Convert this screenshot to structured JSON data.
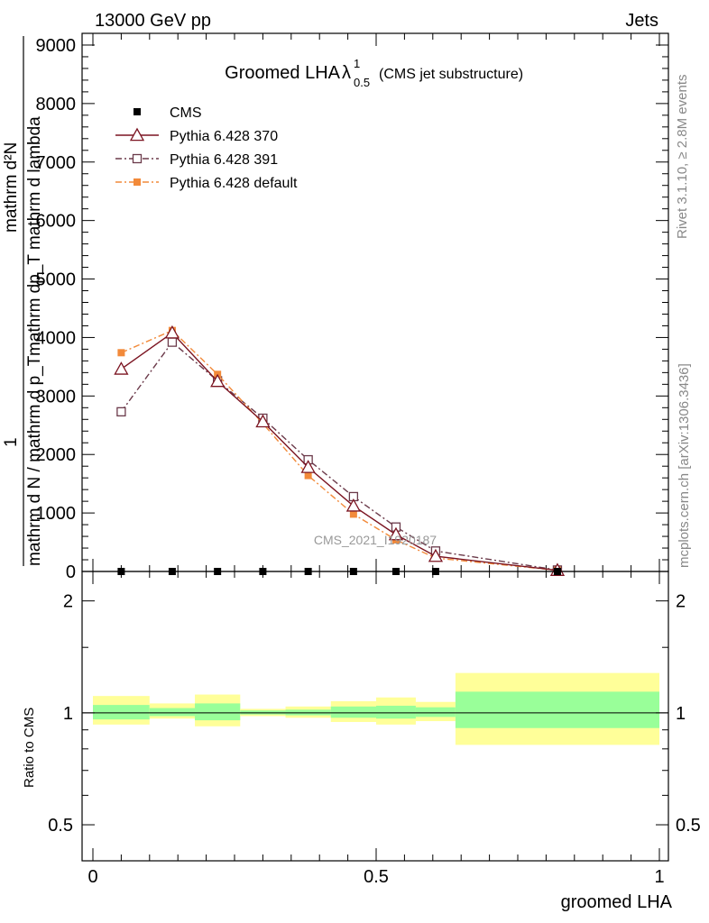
{
  "header": {
    "energy_label": "13000 GeV pp",
    "process_label": "Jets"
  },
  "side_labels": {
    "rivet": "Rivet 3.1.10, ≥ 2.8M events",
    "mcplots": "mcplots.cern.ch [arXiv:1306.3436]"
  },
  "watermark": "CMS_2021_I1920187",
  "chart_data": [
    {
      "type": "line",
      "title": "Groomed LHA",
      "title_symbol": "λ",
      "title_sup": "1",
      "title_sub": "0.5",
      "subtitle": "(CMS jet substructure)",
      "xlabel": "groomed LHA",
      "ylabel_numerator": "mathrm d²N",
      "ylabel_numerator_line2": "mathrm dp_T mathrm d lambda",
      "ylabel_denominator": "mathrm d N / mathrm d p_T",
      "ylabel_one": "1",
      "xlim": [
        0,
        1
      ],
      "ylim": [
        0,
        9200
      ],
      "yticks": [
        {
          "value": 0,
          "label": "0"
        },
        {
          "value": 1000,
          "label": "1000"
        },
        {
          "value": 2000,
          "label": "2000"
        },
        {
          "value": 3000,
          "label": "3000"
        },
        {
          "value": 4000,
          "label": "4000"
        },
        {
          "value": 5000,
          "label": "5000"
        },
        {
          "value": 6000,
          "label": "6000"
        },
        {
          "value": 7000,
          "label": "7000"
        },
        {
          "value": 8000,
          "label": "8000"
        },
        {
          "value": 9000,
          "label": "9000"
        }
      ],
      "xticks": [
        {
          "value": 0,
          "label": "0"
        },
        {
          "value": 0.5,
          "label": "0.5"
        },
        {
          "value": 1,
          "label": "1"
        }
      ],
      "legend": "top-left",
      "series": [
        {
          "name": "CMS",
          "color": "#000000",
          "marker": "filled-square",
          "line": "none",
          "x": [
            0.05,
            0.14,
            0.22,
            0.3,
            0.38,
            0.46,
            0.535,
            0.605,
            0.82
          ],
          "y": [
            0,
            0,
            0,
            0,
            0,
            0,
            0,
            0,
            0
          ]
        },
        {
          "name": "Pythia 6.428 370",
          "color": "#7b1421",
          "marker": "open-triangle",
          "line": "solid",
          "x": [
            0.05,
            0.14,
            0.22,
            0.3,
            0.38,
            0.46,
            0.535,
            0.605,
            0.82
          ],
          "y": [
            3460,
            4080,
            3250,
            2560,
            1780,
            1120,
            630,
            260,
            20
          ]
        },
        {
          "name": "Pythia 6.428 391",
          "color": "#6b3a4a",
          "marker": "open-square",
          "line": "dash-dot",
          "x": [
            0.05,
            0.14,
            0.22,
            0.3,
            0.38,
            0.46,
            0.535,
            0.605,
            0.82
          ],
          "y": [
            2730,
            3920,
            3260,
            2620,
            1910,
            1280,
            760,
            350,
            25
          ]
        },
        {
          "name": "Pythia 6.428 default",
          "color": "#f28a3a",
          "marker": "filled-square",
          "line": "dash-dot",
          "x": [
            0.05,
            0.14,
            0.22,
            0.3,
            0.38,
            0.46,
            0.535,
            0.605,
            0.82
          ],
          "y": [
            3740,
            4120,
            3370,
            2530,
            1640,
            980,
            540,
            230,
            20
          ]
        }
      ]
    },
    {
      "type": "area",
      "ylabel": "Ratio to CMS",
      "xlabel": "groomed LHA",
      "xlim": [
        0,
        1
      ],
      "ylim": [
        0.4,
        2.4
      ],
      "yscale": "log",
      "yticks": [
        {
          "value": 0.5,
          "label": "0.5"
        },
        {
          "value": 1,
          "label": "1"
        },
        {
          "value": 2,
          "label": "2"
        }
      ],
      "reference_line": 1,
      "bands": [
        {
          "x0": 0.0,
          "x1": 0.1,
          "inner": [
            0.96,
            1.05
          ],
          "outer": [
            0.93,
            1.11
          ]
        },
        {
          "x0": 0.1,
          "x1": 0.18,
          "inner": [
            0.98,
            1.03
          ],
          "outer": [
            0.965,
            1.06
          ]
        },
        {
          "x0": 0.18,
          "x1": 0.26,
          "inner": [
            0.955,
            1.06
          ],
          "outer": [
            0.92,
            1.12
          ]
        },
        {
          "x0": 0.26,
          "x1": 0.34,
          "inner": [
            0.99,
            1.015
          ],
          "outer": [
            0.98,
            1.025
          ]
        },
        {
          "x0": 0.34,
          "x1": 0.42,
          "inner": [
            0.985,
            1.02
          ],
          "outer": [
            0.97,
            1.04
          ]
        },
        {
          "x0": 0.42,
          "x1": 0.5,
          "inner": [
            0.97,
            1.04
          ],
          "outer": [
            0.945,
            1.075
          ]
        },
        {
          "x0": 0.5,
          "x1": 0.57,
          "inner": [
            0.965,
            1.045
          ],
          "outer": [
            0.93,
            1.1
          ]
        },
        {
          "x0": 0.57,
          "x1": 0.64,
          "inner": [
            0.975,
            1.035
          ],
          "outer": [
            0.95,
            1.07
          ]
        },
        {
          "x0": 0.64,
          "x1": 1.0,
          "inner": [
            0.91,
            1.14
          ],
          "outer": [
            0.82,
            1.28
          ]
        }
      ],
      "colors": {
        "inner": "#99ff99",
        "outer": "#ffff99"
      }
    }
  ]
}
